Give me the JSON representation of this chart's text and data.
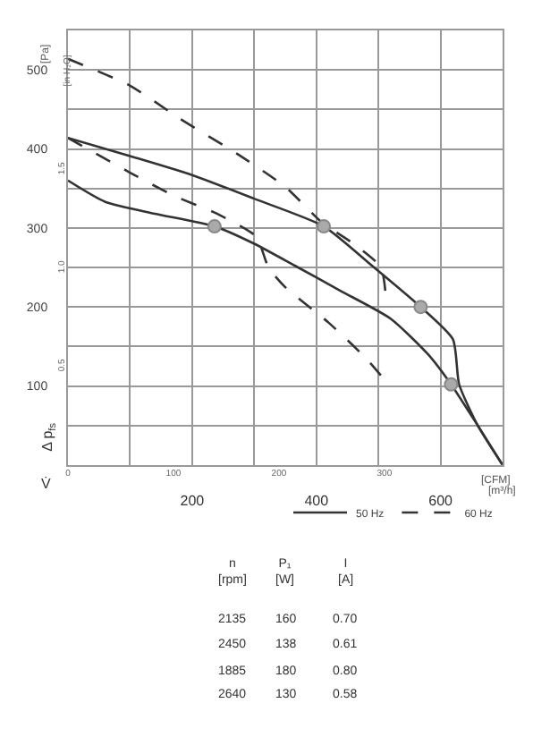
{
  "chart_data": [
    {
      "type": "line",
      "xlabel": "[m³/h]",
      "x2label": "[CFM]",
      "ylabel": "[Pa]",
      "y2label": "[in H₂O]",
      "annotations": [
        "Δ p$_{fs}$",
        "V̇"
      ],
      "xlim": [
        0,
        700
      ],
      "xticks": [
        {
          "value": 0,
          "label": null
        },
        {
          "value": 100,
          "label": null
        },
        200,
        {
          "value": 300,
          "label": null
        },
        400,
        {
          "value": 500,
          "label": null
        },
        600,
        {
          "value": 700,
          "label": null
        }
      ],
      "x2lim": [
        0,
        412
      ],
      "x2ticks": [
        0,
        100,
        200,
        300
      ],
      "ylim": [
        0,
        550
      ],
      "yticks": [
        {
          "value": 50,
          "label": null
        },
        100,
        {
          "value": 150,
          "label": null
        },
        200,
        {
          "value": 250,
          "label": null
        },
        300,
        {
          "value": 350,
          "label": null
        },
        400,
        {
          "value": 450,
          "label": null
        },
        500
      ],
      "y2lim": [
        0,
        2.208
      ],
      "y2ticks": [
        {
          "value": 0.5,
          "label": "0.5"
        },
        {
          "value": 1,
          "label": "1.0"
        },
        {
          "value": 1.5,
          "label": "1.5"
        }
      ],
      "grid": true,
      "legend": "bottom right",
      "series": [
        {
          "name": "50 Hz",
          "color": "#333333",
          "line_style": "solid",
          "x": [
            0,
            100,
            200,
            300,
            412,
            490,
            568,
            620,
            630,
            660,
            700
          ],
          "values": [
            414,
            391,
            367,
            337,
            302,
            252,
            200,
            159,
            102,
            50,
            0
          ]
        },
        {
          "color": "#333333",
          "line_style": "solid",
          "x": [
            0,
            60,
            140,
            236,
            300,
            366,
            440,
            520,
            580,
            617,
            660,
            700
          ],
          "values": [
            360,
            333,
            318,
            302,
            280,
            252,
            220,
            185,
            140,
            102,
            50,
            0
          ]
        },
        {
          "name": "60 Hz",
          "color": "#333333",
          "line_style": "dashed",
          "x": [
            0,
            100,
            179,
            274,
            350,
            409,
            460,
            504,
            513
          ],
          "values": [
            514,
            480,
            439,
            393,
            352,
            307,
            280,
            250,
            202
          ]
        },
        {
          "color": "#333333",
          "line_style": "dashed",
          "x": [
            0,
            100,
            170,
            240,
            303,
            323,
            350,
            420,
            480,
            516
          ],
          "values": [
            414,
            370,
            341,
            318,
            289,
            250,
            225,
            180,
            135,
            102
          ]
        },
        {
          "type": "scatter",
          "color": "#aaaaaa",
          "marker": "circle",
          "x": [
            236,
            412,
            568,
            617
          ],
          "values": [
            302,
            302,
            200,
            102
          ]
        }
      ]
    },
    {
      "type": "other",
      "annotations": [
        "n\n[rpm]",
        "P₁\n[W]",
        "I\n[A]",
        "2135",
        "160",
        "0.70",
        "2450",
        "138",
        "0.61",
        "1885",
        "180",
        "0.80",
        "2640",
        "130",
        "0.58"
      ]
    }
  ]
}
